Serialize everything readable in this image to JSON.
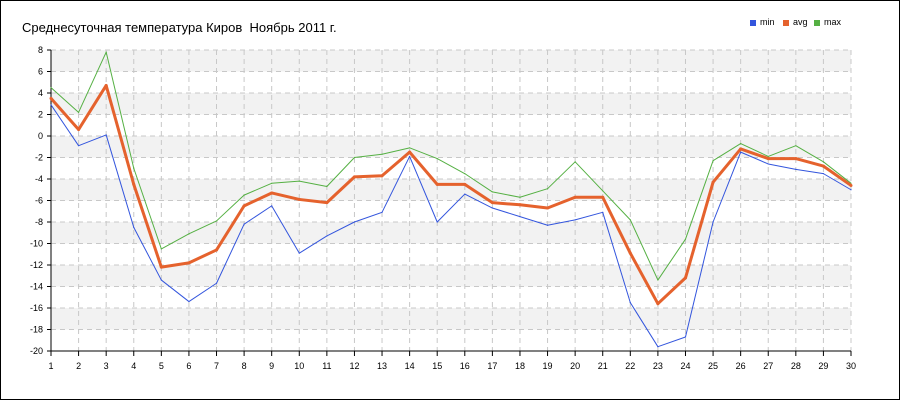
{
  "chart_data": {
    "type": "line",
    "title": "Среднесуточная температура Киров  Ноябрь 2011 г.",
    "xlabel": "",
    "ylabel": "",
    "x": [
      1,
      2,
      3,
      4,
      5,
      6,
      7,
      8,
      9,
      10,
      11,
      12,
      13,
      14,
      15,
      16,
      17,
      18,
      19,
      20,
      21,
      22,
      23,
      24,
      25,
      26,
      27,
      28,
      29,
      30
    ],
    "xlim": [
      1,
      30
    ],
    "ylim": [
      -20,
      8
    ],
    "yticks": [
      "8",
      "6",
      "4",
      "2",
      "0",
      "-2",
      "-4",
      "-6",
      "-8",
      "-10",
      "-12",
      "-14",
      "-16",
      "-18",
      "-20"
    ],
    "xticks": [
      "1",
      "2",
      "3",
      "4",
      "5",
      "6",
      "7",
      "8",
      "9",
      "10",
      "11",
      "12",
      "13",
      "14",
      "15",
      "16",
      "17",
      "18",
      "19",
      "20",
      "21",
      "22",
      "23",
      "24",
      "25",
      "26",
      "27",
      "28",
      "29",
      "30"
    ],
    "grid": true,
    "legend_position": "top-right",
    "series": [
      {
        "name": "min",
        "color": "#3355dd",
        "values": [
          2.9,
          -0.9,
          0.1,
          -8.5,
          -13.4,
          -15.4,
          -13.7,
          -8.2,
          -6.5,
          -10.9,
          -9.3,
          -8.0,
          -7.1,
          -1.9,
          -8.0,
          -5.4,
          -6.7,
          -7.5,
          -8.3,
          -7.8,
          -7.1,
          -15.5,
          -19.6,
          -18.7,
          -8.0,
          -1.5,
          -2.6,
          -3.1,
          -3.5,
          -5.0
        ]
      },
      {
        "name": "avg",
        "color": "#e5622d",
        "values": [
          3.5,
          0.6,
          4.7,
          -4.5,
          -12.2,
          -11.8,
          -10.6,
          -6.5,
          -5.3,
          -5.9,
          -6.2,
          -3.8,
          -3.7,
          -1.5,
          -4.5,
          -4.5,
          -6.2,
          -6.4,
          -6.7,
          -5.7,
          -5.7,
          -10.9,
          -15.6,
          -13.2,
          -4.3,
          -1.2,
          -2.1,
          -2.1,
          -2.8,
          -4.6
        ]
      },
      {
        "name": "max",
        "color": "#55b043",
        "values": [
          4.5,
          2.2,
          7.8,
          -3.0,
          -10.5,
          -9.1,
          -7.9,
          -5.5,
          -4.4,
          -4.2,
          -4.7,
          -2.0,
          -1.7,
          -1.1,
          -2.1,
          -3.5,
          -5.2,
          -5.7,
          -4.9,
          -2.4,
          -5.1,
          -7.8,
          -13.4,
          -9.6,
          -2.3,
          -0.7,
          -1.9,
          -0.9,
          -2.4,
          -4.4
        ]
      }
    ]
  }
}
